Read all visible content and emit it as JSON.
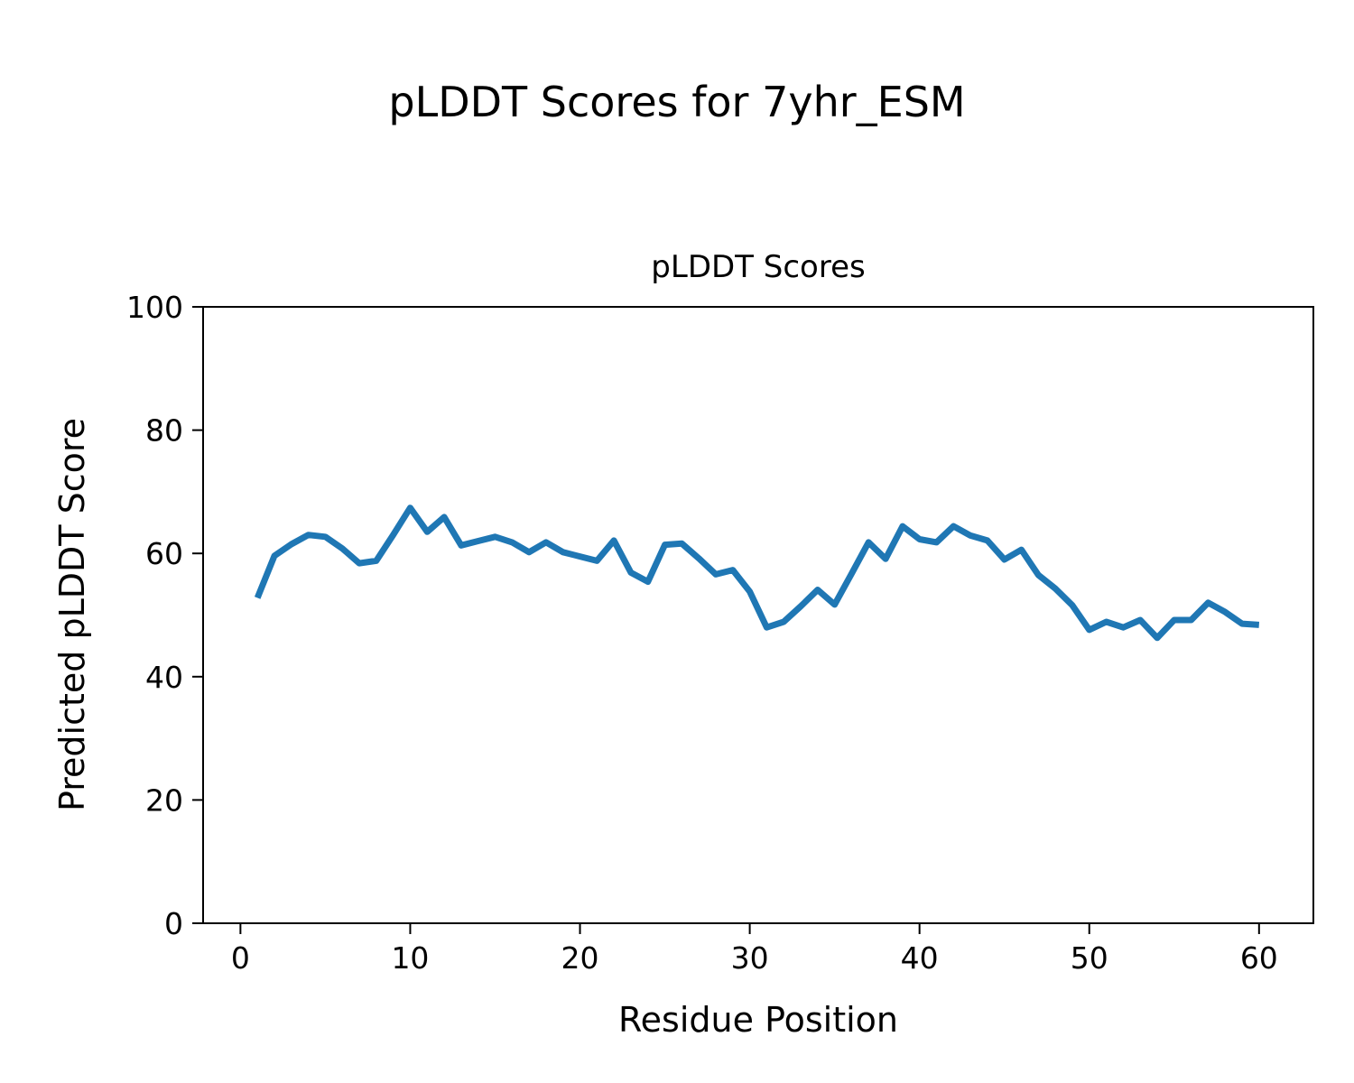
{
  "figure": {
    "suptitle": "pLDDT Scores for 7yhr_ESM"
  },
  "chart_data": {
    "type": "line",
    "title": "pLDDT Scores",
    "xlabel": "Residue Position",
    "ylabel": "Predicted pLDDT Score",
    "grid": false,
    "legend": "none",
    "xlim": [
      -2.2,
      63.2
    ],
    "ylim": [
      0,
      100
    ],
    "xticks": [
      0,
      10,
      20,
      30,
      40,
      50,
      60
    ],
    "yticks": [
      0,
      20,
      40,
      60,
      80,
      100
    ],
    "x": [
      1,
      2,
      3,
      4,
      5,
      6,
      7,
      8,
      9,
      10,
      11,
      12,
      13,
      14,
      15,
      16,
      17,
      18,
      19,
      20,
      21,
      22,
      23,
      24,
      25,
      26,
      27,
      28,
      29,
      30,
      31,
      32,
      33,
      34,
      35,
      36,
      37,
      38,
      39,
      40,
      41,
      42,
      43,
      44,
      45,
      46,
      47,
      48,
      49,
      50,
      51,
      52,
      53,
      54,
      55,
      56,
      57,
      58,
      59,
      60
    ],
    "series": [
      {
        "name": "pLDDT",
        "color": "#1f77b4",
        "values": [
          52.8,
          59.6,
          61.5,
          63.0,
          62.7,
          60.8,
          58.4,
          58.8,
          63.0,
          67.4,
          63.5,
          65.9,
          61.3,
          62.0,
          62.7,
          61.8,
          60.2,
          61.8,
          60.2,
          59.5,
          58.8,
          62.1,
          56.9,
          55.4,
          61.4,
          61.6,
          59.2,
          56.6,
          57.3,
          53.8,
          48.0,
          48.9,
          51.4,
          54.1,
          51.7,
          56.7,
          61.8,
          59.1,
          64.4,
          62.3,
          61.8,
          64.4,
          62.9,
          62.1,
          59.0,
          60.6,
          56.5,
          54.3,
          51.6,
          47.6,
          48.9,
          48.0,
          49.2,
          46.3,
          49.2,
          49.2,
          52.0,
          50.5,
          48.6,
          48.4
        ]
      }
    ],
    "colors": {
      "line": "#1f77b4",
      "spine": "#000000",
      "background": "#ffffff",
      "text": "#000000"
    }
  }
}
